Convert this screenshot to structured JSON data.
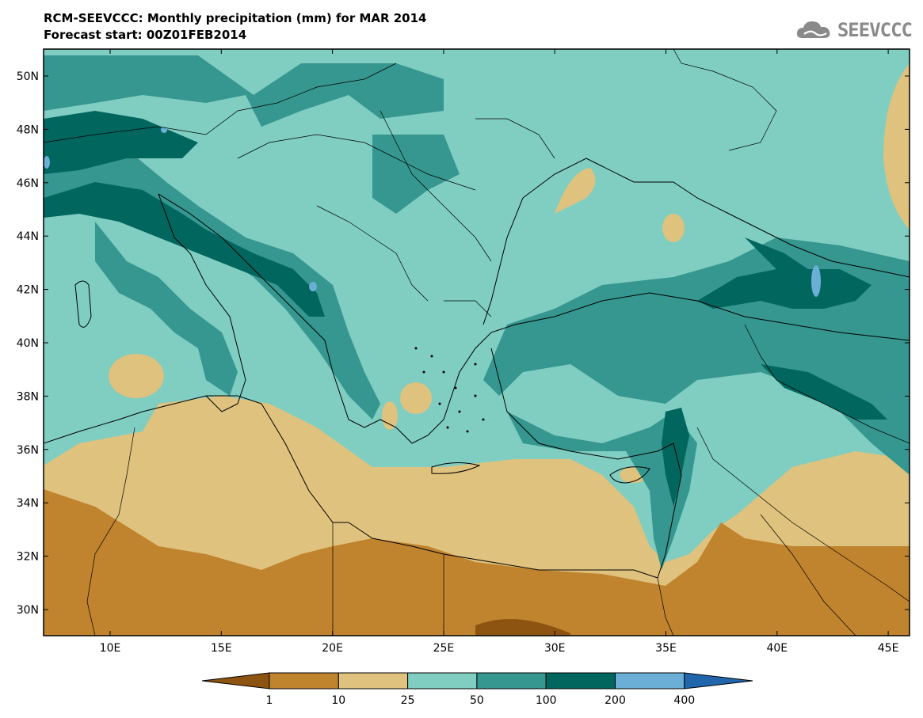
{
  "header": {
    "title": "RCM-SEEVCCC: Monthly precipitation (mm) for MAR 2014",
    "subtitle": "Forecast start: 00Z01FEB2014"
  },
  "logo": {
    "text": "SEEVCCC",
    "icon": "cloud-icon"
  },
  "map": {
    "lat_labels": [
      "50N",
      "48N",
      "46N",
      "44N",
      "42N",
      "40N",
      "38N",
      "36N",
      "34N",
      "32N",
      "30N"
    ],
    "lon_labels": [
      "10E",
      "15E",
      "20E",
      "25E",
      "30E",
      "35E",
      "40E",
      "45E"
    ]
  },
  "legend": {
    "labels": [
      "1",
      "10",
      "25",
      "50",
      "100",
      "200",
      "400"
    ],
    "colors": [
      "#8c5410",
      "#c0832e",
      "#dfc27d",
      "#80cdc1",
      "#35978f",
      "#01665e",
      "#6baed6",
      "#2166ac"
    ]
  }
}
